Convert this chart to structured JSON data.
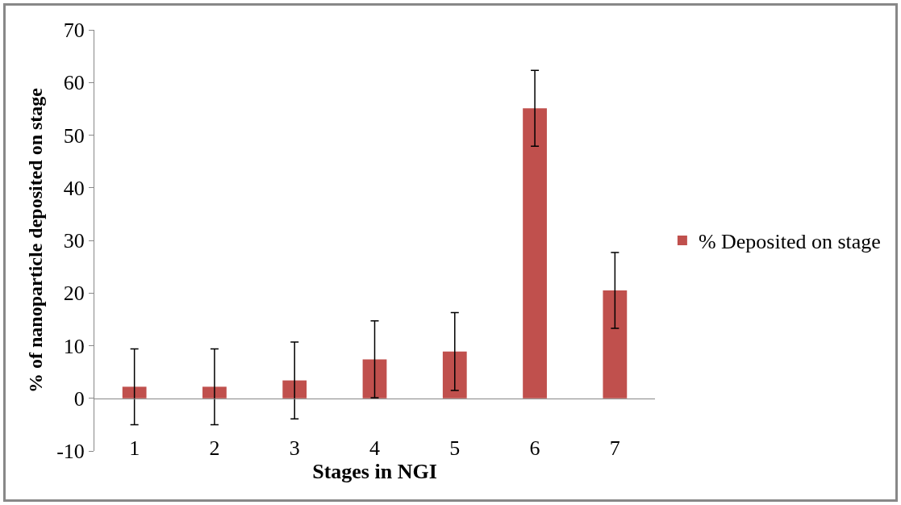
{
  "chart_data": {
    "type": "bar",
    "xlabel": "Stages in NGI",
    "ylabel": "% of nanoparticle deposited on stage",
    "categories": [
      "1",
      "2",
      "3",
      "4",
      "5",
      "6",
      "7"
    ],
    "series": [
      {
        "name": "% Deposited on stage",
        "color": "#c0504d",
        "values": [
          2.2,
          2.2,
          3.4,
          7.4,
          8.9,
          55.1,
          20.5
        ],
        "errors": [
          7.2,
          7.2,
          7.3,
          7.3,
          7.4,
          7.2,
          7.2
        ]
      }
    ],
    "ylim": [
      -10,
      70
    ],
    "yticks": [
      -10,
      0,
      10,
      20,
      30,
      40,
      50,
      60,
      70
    ],
    "grid": false,
    "legend": "right"
  }
}
